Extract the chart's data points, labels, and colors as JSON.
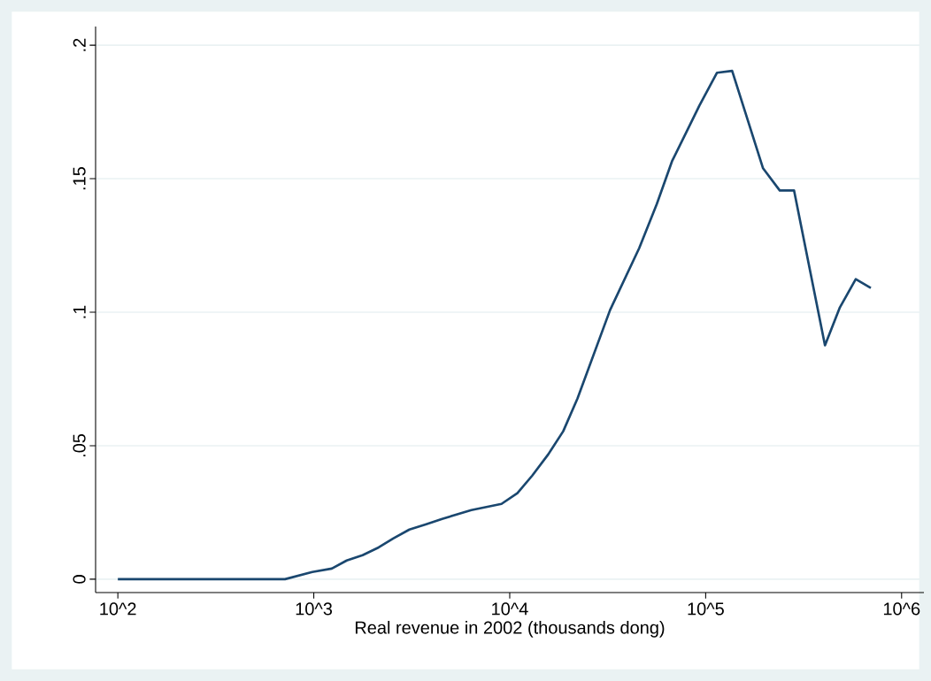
{
  "chart_data": {
    "type": "line",
    "xlabel": "Real revenue in 2002 (thousands dong)",
    "log": "x",
    "grid": "y",
    "x": [
      100,
      713,
      982,
      1236,
      1472,
      1774,
      2143,
      2553,
      3076,
      3750,
      4519,
      6368,
      9078,
      10940,
      13030,
      15740,
      18750,
      22180,
      32510,
      45810,
      56360,
      67300,
      79430,
      92900,
      114300,
      136500,
      196300,
      238800,
      282500,
      406400,
      484200,
      583400,
      696600
    ],
    "series": [
      {
        "color": "#1a476f",
        "values": [
          0,
          0,
          0.0027,
          0.004,
          0.007,
          0.009,
          0.0119,
          0.0153,
          0.0186,
          0.0206,
          0.0226,
          0.0259,
          0.0282,
          0.0322,
          0.0388,
          0.0468,
          0.0554,
          0.0677,
          0.1008,
          0.124,
          0.1406,
          0.1565,
          0.1672,
          0.1774,
          0.1897,
          0.1904,
          0.1539,
          0.1456,
          0.1456,
          0.0876,
          0.1018,
          0.1124,
          0.1091
        ]
      }
    ],
    "xlim": [
      77,
      1300000
    ],
    "ylim": [
      -0.005,
      0.207
    ],
    "xticks": [
      {
        "value": 100,
        "label": "10^2"
      },
      {
        "value": 1000,
        "label": "10^3"
      },
      {
        "value": 10000,
        "label": "10^4"
      },
      {
        "value": 100000,
        "label": "10^5"
      },
      {
        "value": 1000000,
        "label": "10^6"
      }
    ],
    "yticks": [
      {
        "value": 0,
        "label": "0"
      },
      {
        "value": 0.05,
        "label": ".05"
      },
      {
        "value": 0.1,
        "label": ".1"
      },
      {
        "value": 0.15,
        "label": ".15"
      },
      {
        "value": 0.2,
        "label": ".2"
      }
    ]
  }
}
